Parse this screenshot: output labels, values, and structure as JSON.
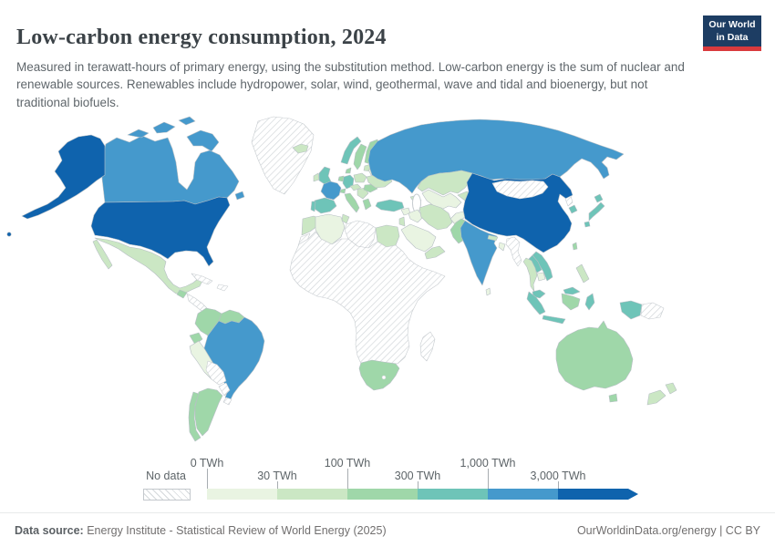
{
  "header": {
    "title": "Low-carbon energy consumption, 2024",
    "subtitle": "Measured in terawatt-hours of primary energy, using the substitution method. Low-carbon energy is the sum of nuclear and renewable sources. Renewables include hydropower, solar, wind, geothermal, wave and tidal and bioenergy, but not traditional biofuels.",
    "logo": {
      "line1": "Our World",
      "line2": "in Data",
      "navy": "#1d3d63",
      "red": "#d93a3d"
    }
  },
  "legend": {
    "no_data_label": "No data",
    "tick_labels": [
      "0 TWh",
      "30 TWh",
      "100 TWh",
      "300 TWh",
      "1,000 TWh",
      "3,000 TWh"
    ]
  },
  "map": {
    "palette": {
      "bins": [
        "#e9f4e2",
        "#cbe7c4",
        "#9fd7a9",
        "#6ec4b8",
        "#4599cc",
        "#0f63ad"
      ],
      "nodata_line": "#d3d7da"
    },
    "regions": {
      "greenland": 0,
      "canada": 5,
      "arctic-a": 5,
      "arctic-b": 5,
      "arctic-c": 5,
      "arctic-d": 5,
      "newfoundland": 5,
      "alaska": 6,
      "usa": 6,
      "hawaii": 6,
      "mexico": 2,
      "baja": 2,
      "guatemala": 3,
      "central-america": 0,
      "costa-rica-panama": 3,
      "cuba": 0,
      "hispaniola": 0,
      "colombia": 3,
      "venezuela": 3,
      "guyanas": 0,
      "ecuador": 3,
      "peru": 1,
      "brazil": 5,
      "bolivia": 0,
      "paraguay": 0,
      "argentina": 3,
      "chile": 3,
      "uruguay": 0,
      "iceland": 2,
      "uk": 4,
      "ireland": 2,
      "norway": 4,
      "sweden": 3,
      "finland": 3,
      "denmark": 3,
      "baltics": 2,
      "france": 5,
      "spain": 4,
      "portugal": 4,
      "germany": 4,
      "benelux": 3,
      "poland": 2,
      "czech-austria": 2,
      "switzerland": 3,
      "italy": 3,
      "balkans": 2,
      "romania": 3,
      "greece": 3,
      "ukraine": 2,
      "belarus": 1,
      "turkey": 4,
      "russia": 5,
      "kazakhstan": 2,
      "central-asia": 1,
      "kyrgyz-tajik": 2,
      "caucasus": 2,
      "morocco": 2,
      "western-sahara": 0,
      "algeria": 1,
      "tunisia": 2,
      "libya": 0,
      "egypt": 2,
      "sub-saharan-africa": 0,
      "south-africa": 3,
      "madagascar": 0,
      "iran": 2,
      "iraq": 1,
      "syria": 1,
      "saudi-arabia": 1,
      "yemen-oman": 2,
      "israel-jordan": 2,
      "china": 6,
      "mongolia": 0,
      "north-korea": 0,
      "south-korea": 4,
      "japan-hokkaido": 4,
      "japan-honshu": 4,
      "japan-kyushu": 4,
      "taiwan": 3,
      "india": 5,
      "pakistan": 3,
      "afghanistan": 1,
      "nepal": 2,
      "bangladesh": 1,
      "sri-lanka": 1,
      "myanmar": 0,
      "vietnam": 4,
      "laos": 4,
      "thailand": 2,
      "cambodia": 1,
      "malaysia": 4,
      "borneo-malaysia": 4,
      "sumatra": 4,
      "java": 4,
      "kalimantan": 3,
      "sulawesi": 4,
      "west-papua": 4,
      "papua-new-guinea": 0,
      "philippines": 2,
      "australia": 3,
      "tasmania": 3,
      "nz-north": 2,
      "nz-south": 2
    }
  },
  "footer": {
    "source_label": "Data source:",
    "source_text": "Energy Institute - Statistical Review of World Energy (2025)",
    "site_link": "OurWorldinData.org/energy",
    "separator": "|",
    "license": "CC BY"
  }
}
